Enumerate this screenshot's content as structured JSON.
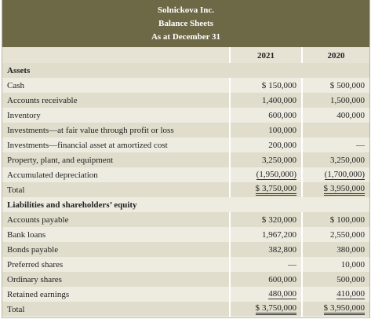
{
  "header": {
    "company": "Solnickova Inc.",
    "statement": "Balance Sheets",
    "date": "As at December 31"
  },
  "table": {
    "columns": [
      "2021",
      "2020"
    ],
    "rows": [
      {
        "label": "Assets"
      },
      {
        "label": "Cash",
        "currency": "$",
        "values": [
          "150,000",
          "500,000"
        ]
      },
      {
        "label": "Accounts receivable",
        "values": [
          "1,400,000",
          "1,500,000"
        ]
      },
      {
        "label": "Inventory",
        "values": [
          "600,000",
          "400,000"
        ]
      },
      {
        "label": "Investments—at fair value through profit or loss",
        "values": [
          "100,000",
          null
        ]
      },
      {
        "label": "Investments—financial asset at amortized cost",
        "values": [
          "200,000",
          "—"
        ]
      },
      {
        "label": "Property, plant, and equipment",
        "values": [
          "3,250,000",
          "3,250,000"
        ]
      },
      {
        "label": "Accumulated depreciation",
        "values": [
          "(1,950,000)",
          "(1,700,000)"
        ]
      },
      {
        "label": "Total",
        "currency": "$",
        "values": [
          "3,750,000",
          "3,950,000"
        ]
      },
      {
        "label": "Liabilities and shareholders’ equity"
      },
      {
        "label": "Accounts payable",
        "currency": "$",
        "values": [
          "320,000",
          "100,000"
        ]
      },
      {
        "label": "Bank loans",
        "values": [
          "1,967,200",
          "2,550,000"
        ]
      },
      {
        "label": "Bonds payable",
        "values": [
          "382,800",
          "380,000"
        ]
      },
      {
        "label": "Preferred shares",
        "values": [
          "—",
          "10,000"
        ]
      },
      {
        "label": "Ordinary shares",
        "values": [
          "600,000",
          "500,000"
        ]
      },
      {
        "label": "Retained earnings",
        "values": [
          "480,000",
          "410,000"
        ]
      },
      {
        "label": "Total",
        "currency": "$",
        "values": [
          "3,750,000",
          "3,950,000"
        ]
      }
    ]
  }
}
